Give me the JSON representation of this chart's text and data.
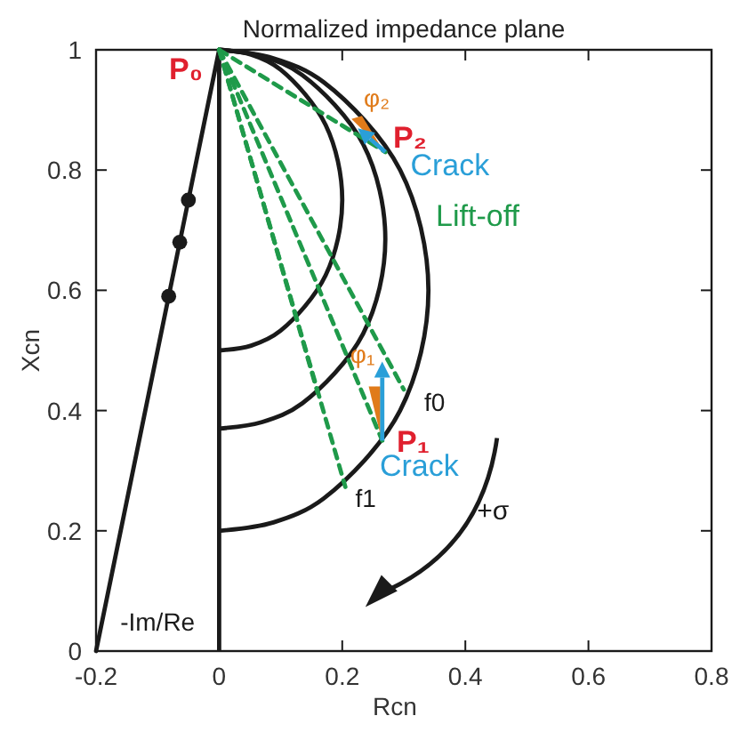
{
  "chart_data": {
    "type": "line",
    "title": "Normalized impedance plane",
    "xlabel": "Rcn",
    "ylabel": "Xcn",
    "xlim": [
      -0.2,
      0.8
    ],
    "ylim": [
      0,
      1
    ],
    "xticks": [
      -0.2,
      0,
      0.2,
      0.4,
      0.6,
      0.8
    ],
    "yticks": [
      0,
      0.2,
      0.4,
      0.6,
      0.8,
      1
    ],
    "grid": false,
    "ref_lines": [
      {
        "axis": "x",
        "value": 0,
        "color": "#1a1a1a"
      }
    ],
    "series": [
      {
        "type": "line",
        "color": "#1a1a1a",
        "x": [
          -0.2,
          0
        ],
        "values": [
          0,
          1
        ]
      },
      {
        "type": "scatter",
        "color": "#1a1a1a",
        "marker": "circle",
        "x": [
          -0.082,
          -0.064,
          -0.05
        ],
        "values": [
          0.59,
          0.68,
          0.75
        ]
      },
      {
        "type": "line",
        "color": "#1a1a1a",
        "x": [
          0,
          0.052,
          0.1,
          0.173,
          0.2,
          0.173,
          0.1,
          0.052,
          0
        ],
        "values": [
          1,
          0.992,
          0.967,
          0.875,
          0.75,
          0.625,
          0.533,
          0.508,
          0.5
        ]
      },
      {
        "type": "line",
        "color": "#1a1a1a",
        "x": [
          0,
          0.07,
          0.135,
          0.234,
          0.27,
          0.234,
          0.135,
          0.07,
          0
        ],
        "values": [
          1,
          0.989,
          0.958,
          0.843,
          0.685,
          0.528,
          0.412,
          0.381,
          0.37
        ]
      },
      {
        "type": "line",
        "color": "#1a1a1a",
        "x": [
          0,
          0.088,
          0.17,
          0.294,
          0.34,
          0.294,
          0.17,
          0.088,
          0
        ],
        "values": [
          1,
          0.986,
          0.946,
          0.8,
          0.6,
          0.4,
          0.254,
          0.214,
          0.2
        ]
      },
      {
        "type": "line",
        "color": "#1f9a4a",
        "line_style": "dashed",
        "x": [
          0,
          0.27
        ],
        "values": [
          1,
          0.83
        ]
      },
      {
        "type": "line",
        "color": "#1f9a4a",
        "line_style": "dashed",
        "x": [
          0,
          0.3
        ],
        "values": [
          1,
          0.435
        ]
      },
      {
        "type": "line",
        "color": "#1f9a4a",
        "line_style": "dashed",
        "x": [
          0,
          0.265
        ],
        "values": [
          1,
          0.35
        ]
      },
      {
        "type": "line",
        "color": "#1f9a4a",
        "line_style": "dashed",
        "x": [
          0,
          0.16
        ],
        "values": [
          1,
          0.43
        ]
      },
      {
        "type": "line",
        "color": "#1f9a4a",
        "line_style": "dashed",
        "x": [
          0,
          0.205
        ],
        "values": [
          1,
          0.273
        ]
      },
      {
        "type": "area",
        "color": "#e07b1a",
        "x": [
          0.262,
          0.243,
          0.262
        ],
        "values": [
          0.36,
          0.44,
          0.44
        ]
      },
      {
        "type": "area",
        "color": "#e07b1a",
        "x": [
          0.265,
          0.215,
          0.232
        ],
        "values": [
          0.835,
          0.885,
          0.89
        ]
      }
    ],
    "annotations": [
      "P₀",
      "φ₂",
      "P₂",
      "Crack",
      "Lift-off",
      {
        "text": "φ₁",
        "x": 0.256,
        "y": 0.413
      },
      "f0",
      "P₁",
      "Crack",
      "f1",
      "+σ",
      "-Im/Re"
    ]
  }
}
